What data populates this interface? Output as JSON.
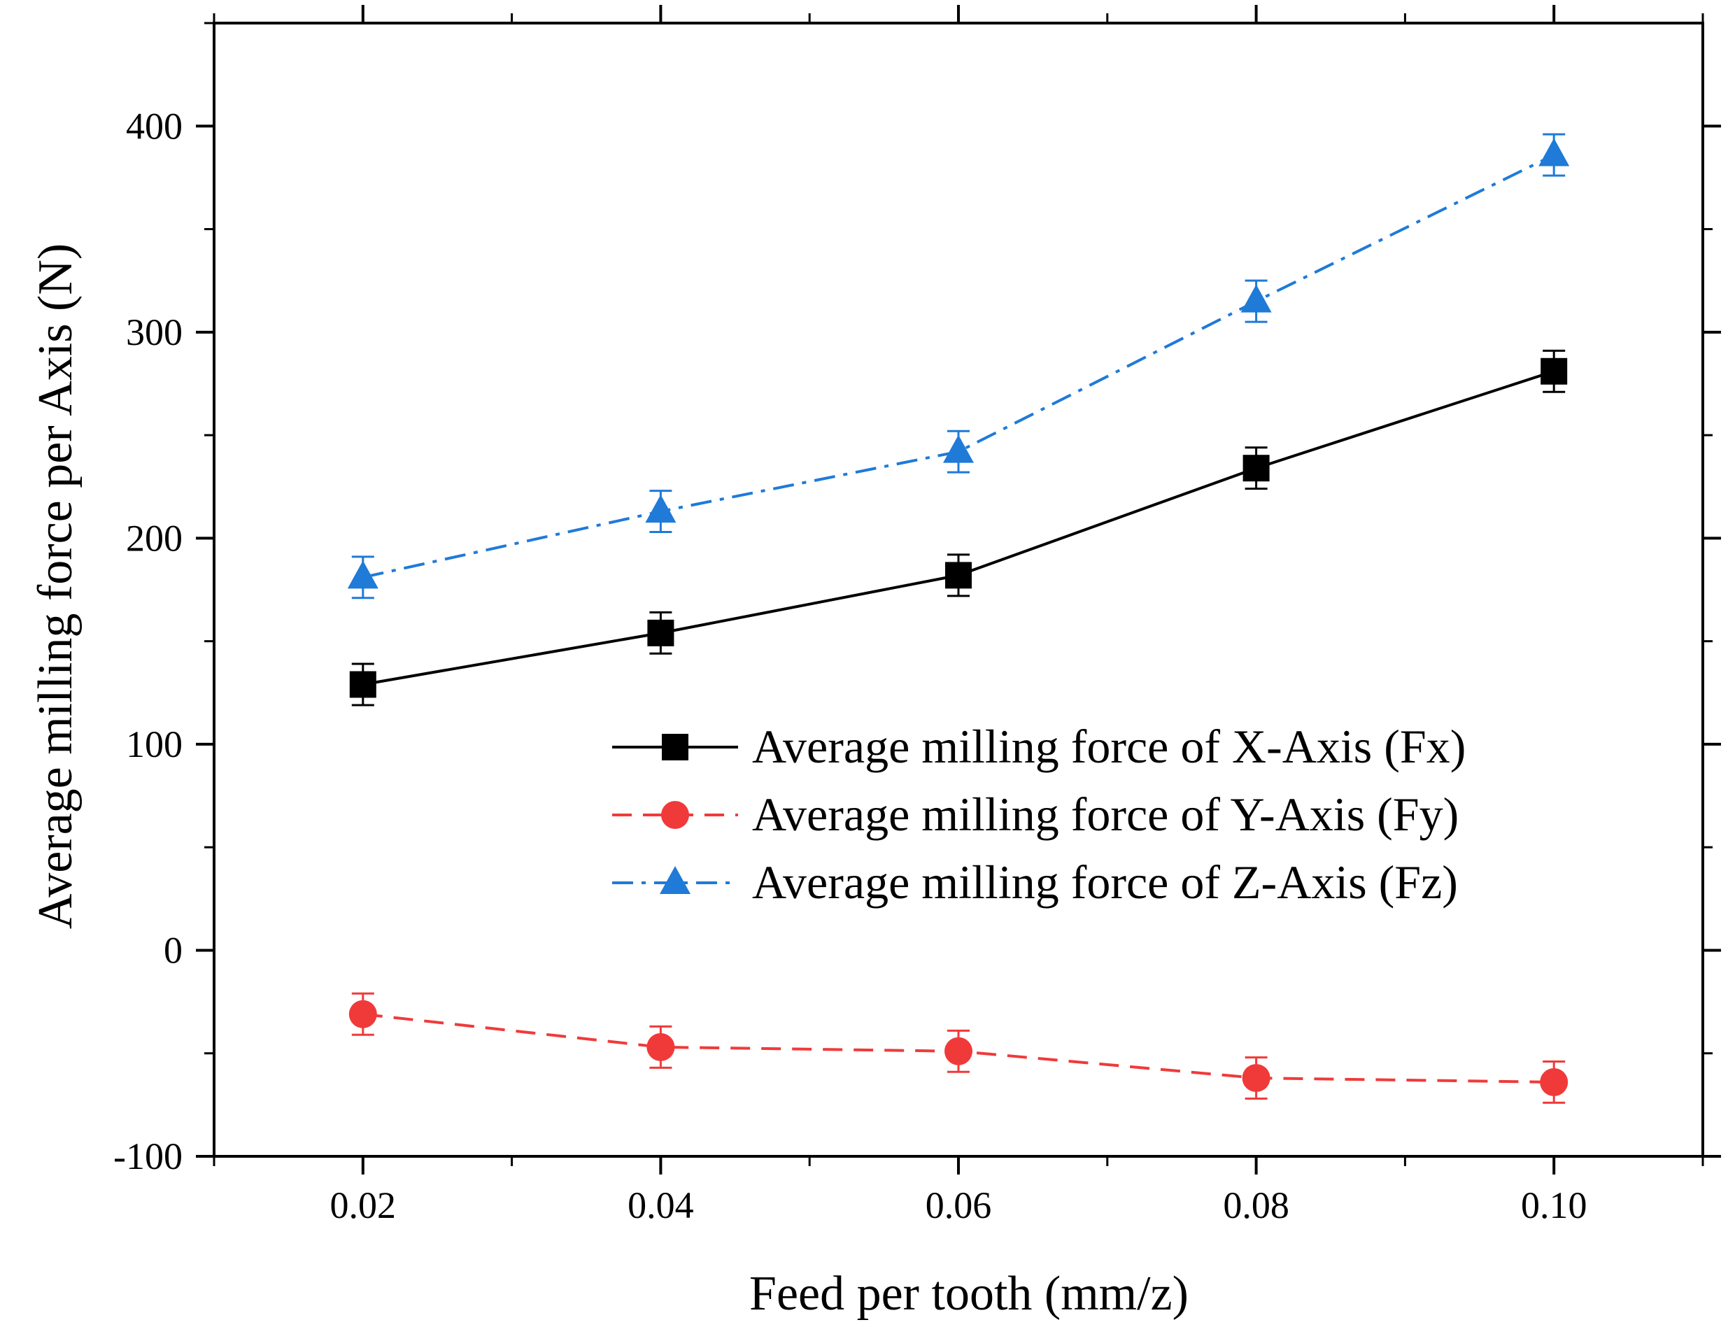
{
  "chart_data": {
    "type": "line",
    "title": "",
    "xlabel": "Feed per tooth (mm/z)",
    "ylabel": "Average milling force per Axis (N)",
    "xlim": [
      0.01,
      0.11
    ],
    "ylim": [
      -100,
      450
    ],
    "x": [
      0.02,
      0.04,
      0.06,
      0.08,
      0.1
    ],
    "x_tick_labels": [
      "0.02",
      "0.04",
      "0.06",
      "0.08",
      "0.10"
    ],
    "y_ticks": [
      -100,
      0,
      100,
      200,
      300,
      400
    ],
    "y_tick_labels": [
      "-100",
      "0",
      "100",
      "200",
      "300",
      "400"
    ],
    "legend_position": "center-right",
    "grid": false,
    "series": [
      {
        "name": "Average milling force of X-Axis (Fx)",
        "values": [
          129,
          154,
          182,
          234,
          281
        ],
        "errors": [
          10,
          10,
          10,
          10,
          10
        ],
        "color": "#000000",
        "marker": "square",
        "line_style": "solid"
      },
      {
        "name": "Average milling force of Y-Axis (Fy)",
        "values": [
          -31,
          -47,
          -49,
          -62,
          -64
        ],
        "errors": [
          10,
          10,
          10,
          10,
          10
        ],
        "color": "#f03a3a",
        "marker": "circle",
        "line_style": "dash"
      },
      {
        "name": "Average milling force of Z-Axis (Fz)",
        "values": [
          181,
          213,
          242,
          315,
          386
        ],
        "errors": [
          10,
          10,
          10,
          10,
          10
        ],
        "color": "#1f7ad8",
        "marker": "triangle",
        "line_style": "dash-dot"
      }
    ]
  }
}
